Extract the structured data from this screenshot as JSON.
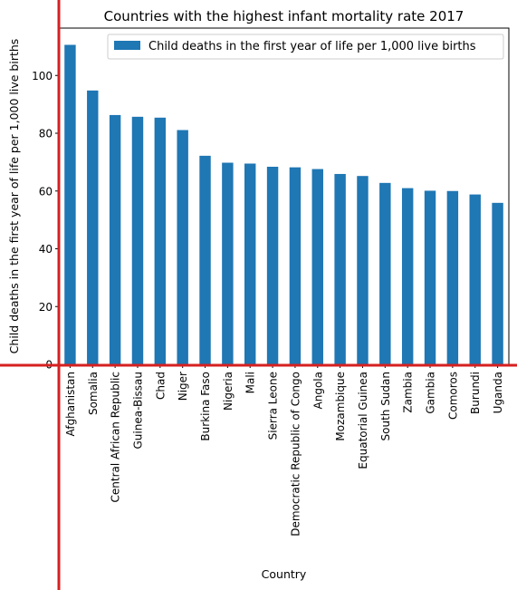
{
  "chart_data": {
    "type": "bar",
    "title": "Countries with the highest infant mortality rate 2017",
    "xlabel": "Country",
    "ylabel": "Child deaths in the first year of life per 1,000 live births",
    "ylim": [
      0,
      116.4
    ],
    "yticks": [
      0,
      20,
      40,
      60,
      80,
      100
    ],
    "legend_position": "top-right",
    "grid": false,
    "bar_color": "#1f77b4",
    "annotation_line_color": "#d62020",
    "series": [
      {
        "name": "Child deaths in the first year of life per 1,000 live births"
      }
    ],
    "categories": [
      "Afghanistan",
      "Somalia",
      "Central African Republic",
      "Guinea-Bissau",
      "Chad",
      "Niger",
      "Burkina Faso",
      "Nigeria",
      "Mali",
      "Sierra Leone",
      "Democratic Republic of Congo",
      "Angola",
      "Mozambique",
      "Equatorial Guinea",
      "South Sudan",
      "Zambia",
      "Gambia",
      "Comoros",
      "Burundi",
      "Uganda"
    ],
    "values": [
      110.6,
      94.8,
      86.3,
      85.7,
      85.4,
      81.1,
      72.2,
      69.8,
      69.5,
      68.4,
      68.2,
      67.6,
      65.9,
      65.2,
      62.8,
      61.0,
      60.1,
      60.0,
      58.8,
      55.9
    ]
  }
}
